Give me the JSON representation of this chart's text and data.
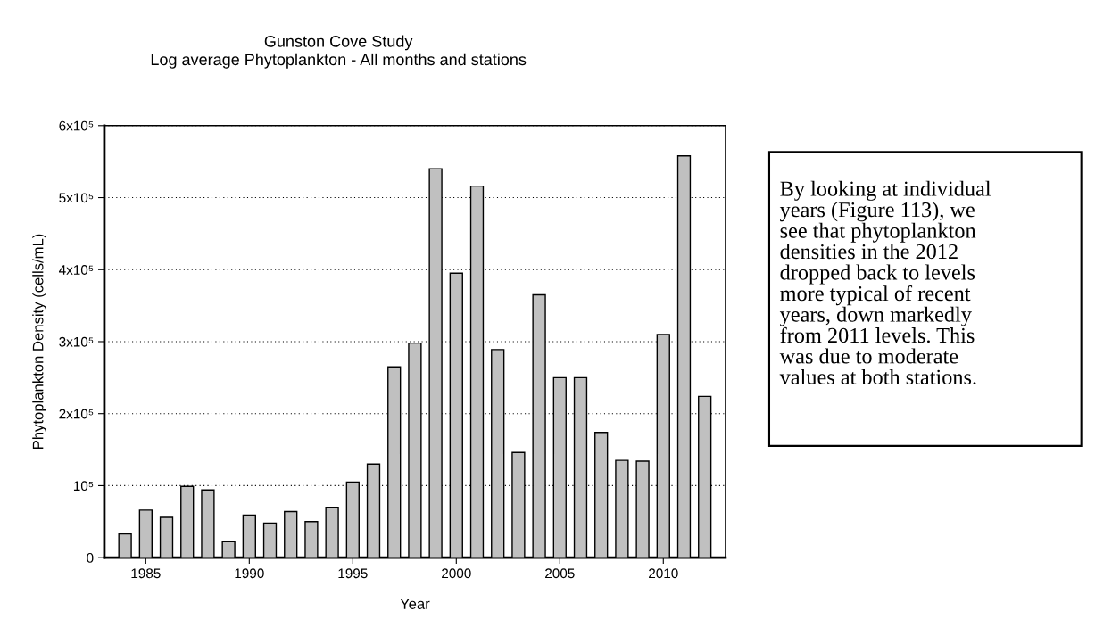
{
  "chart_data": {
    "type": "bar",
    "title": "Gunston Cove Study",
    "subtitle": "Log average Phytoplankton - All months and stations",
    "xlabel": "Year",
    "ylabel": "Phytoplankton Density (cells/mL)",
    "x": [
      1984,
      1985,
      1986,
      1987,
      1988,
      1989,
      1990,
      1991,
      1992,
      1993,
      1994,
      1995,
      1996,
      1997,
      1998,
      1999,
      2000,
      2001,
      2002,
      2003,
      2004,
      2005,
      2006,
      2007,
      2008,
      2009,
      2010,
      2011,
      2012
    ],
    "values": [
      33000,
      66000,
      56000,
      99000,
      94000,
      22000,
      59000,
      48000,
      64000,
      50000,
      70000,
      105000,
      130000,
      265000,
      298000,
      540000,
      395000,
      516000,
      289000,
      146000,
      365000,
      250000,
      250000,
      174000,
      135000,
      134000,
      310000,
      558000,
      224000
    ],
    "color": "#c0c0c0",
    "xlim": [
      1983,
      2013
    ],
    "xticks": [
      1985,
      1990,
      1995,
      2000,
      2005,
      2010
    ],
    "ylim": [
      0,
      600000
    ],
    "yticks": [
      0,
      {
        "value": 100000,
        "label": "10⁵"
      },
      {
        "value": 200000,
        "label": "2x10⁵"
      },
      {
        "value": 300000,
        "label": "3x10⁵"
      },
      {
        "value": 400000,
        "label": "4x10⁵"
      },
      {
        "value": 500000,
        "label": "5x10⁵"
      },
      {
        "value": 600000,
        "label": "6x10⁵"
      }
    ],
    "grid": "y",
    "annotations": [
      "By looking at individual\nyears (Figure 113), we\nsee that phytoplankton\ndensities in the 2012\ndropped back to levels\nmore typical of recent\nyears, down markedly\nfrom 2011 levels. This\nwas due to moderate\nvalues at both stations."
    ]
  }
}
